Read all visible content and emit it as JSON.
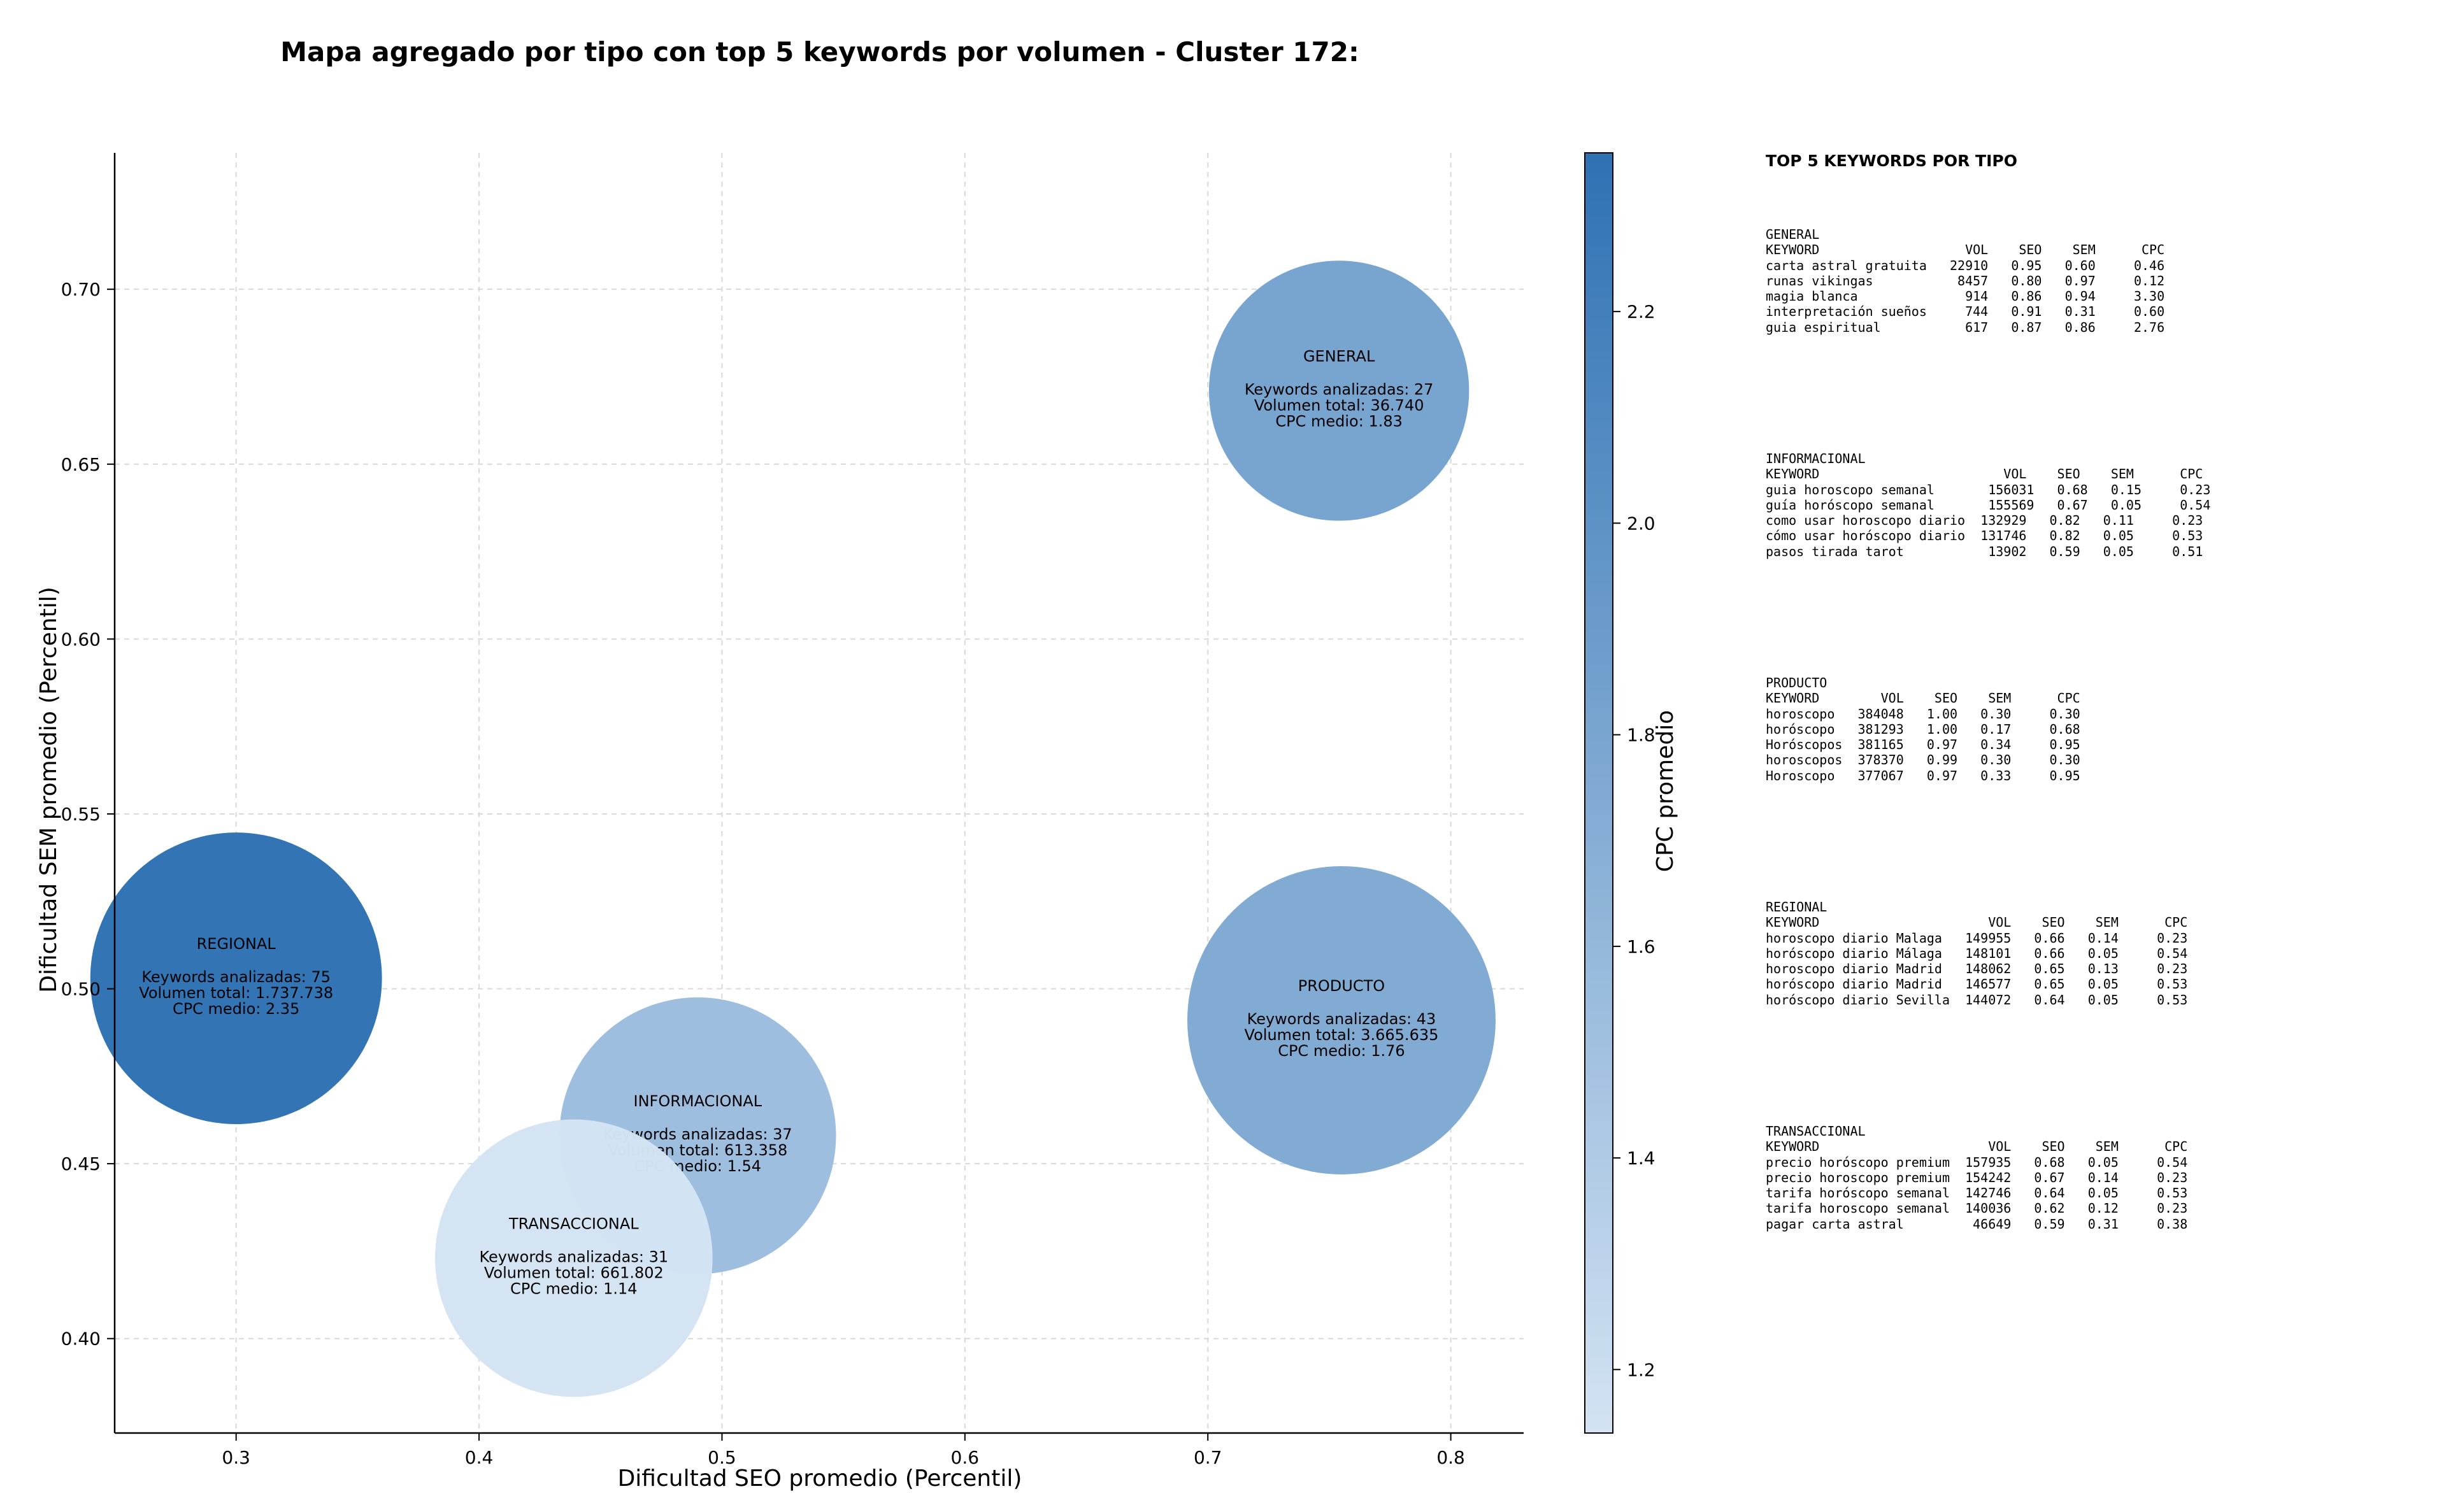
{
  "chart_data": {
    "type": "scatter",
    "title": "Mapa agregado por tipo con top 5 keywords por volumen - Cluster 172:",
    "xlabel": "Dificultad SEO promedio (Percentil)",
    "ylabel": "Dificultad SEM promedio (Percentil)",
    "xlim": [
      0.25,
      0.83
    ],
    "ylim": [
      0.373,
      0.739
    ],
    "xticks": [
      "0.3",
      "0.4",
      "0.5",
      "0.6",
      "0.7",
      "0.8"
    ],
    "yticks": [
      "0.40",
      "0.45",
      "0.50",
      "0.55",
      "0.60",
      "0.65",
      "0.70"
    ],
    "grid": true,
    "colorbar": {
      "label": "CPC promedio",
      "range": [
        1.14,
        2.35
      ],
      "ticks": [
        "1.2",
        "1.4",
        "1.6",
        "1.8",
        "2.0",
        "2.2"
      ],
      "color_low": "#d3e3f3",
      "color_high": "#2e71b3"
    },
    "bubbles": [
      {
        "type": "GENERAL",
        "x": 0.754,
        "y": 0.671,
        "cpc": 1.83,
        "volume": 36740,
        "lines": [
          "Keywords analizadas: 27",
          "Volumen total: 36.740",
          "CPC medio: 1.83"
        ]
      },
      {
        "type": "REGIONAL",
        "x": 0.3,
        "y": 0.503,
        "cpc": 2.35,
        "volume": 1737738,
        "lines": [
          "Keywords analizadas: 75",
          "Volumen total: 1.737.738",
          "CPC medio: 2.35"
        ]
      },
      {
        "type": "PRODUCTO",
        "x": 0.755,
        "y": 0.491,
        "cpc": 1.76,
        "volume": 3665635,
        "lines": [
          "Keywords analizadas: 43",
          "Volumen total: 3.665.635",
          "CPC medio: 1.76"
        ]
      },
      {
        "type": "INFORMACIONAL",
        "x": 0.49,
        "y": 0.458,
        "cpc": 1.54,
        "volume": 613358,
        "lines": [
          "Keywords analizadas: 37",
          "Volumen total: 613.358",
          "CPC medio: 1.54"
        ]
      },
      {
        "type": "TRANSACCIONAL",
        "x": 0.439,
        "y": 0.423,
        "cpc": 1.14,
        "volume": 661802,
        "lines": [
          "Keywords analizadas: 31",
          "Volumen total: 661.802",
          "CPC medio: 1.14"
        ]
      }
    ]
  },
  "tables": {
    "title": "TOP 5 KEYWORDS POR TIPO",
    "blocks": [
      {
        "name": "GENERAL",
        "lines": [
          "GENERAL",
          "KEYWORD                   VOL    SEO    SEM      CPC",
          "carta astral gratuita   22910   0.95   0.60     0.46",
          "runas vikingas           8457   0.80   0.97     0.12",
          "magia blanca              914   0.86   0.94     3.30",
          "interpretación sueños     744   0.91   0.31     0.60",
          "guia espiritual           617   0.87   0.86     2.76"
        ]
      },
      {
        "name": "INFORMACIONAL",
        "lines": [
          "INFORMACIONAL",
          "KEYWORD                        VOL    SEO    SEM      CPC",
          "guia horoscopo semanal       156031   0.68   0.15     0.23",
          "guía horóscopo semanal       155569   0.67   0.05     0.54",
          "como usar horoscopo diario  132929   0.82   0.11     0.23",
          "cómo usar horóscopo diario  131746   0.82   0.05     0.53",
          "pasos tirada tarot           13902   0.59   0.05     0.51"
        ]
      },
      {
        "name": "PRODUCTO",
        "lines": [
          "PRODUCTO",
          "KEYWORD        VOL    SEO    SEM      CPC",
          "horoscopo   384048   1.00   0.30     0.30",
          "horóscopo   381293   1.00   0.17     0.68",
          "Horóscopos  381165   0.97   0.34     0.95",
          "horoscopos  378370   0.99   0.30     0.30",
          "Horoscopo   377067   0.97   0.33     0.95"
        ]
      },
      {
        "name": "REGIONAL",
        "lines": [
          "REGIONAL",
          "KEYWORD                      VOL    SEO    SEM      CPC",
          "horoscopo diario Malaga   149955   0.66   0.14     0.23",
          "horóscopo diario Málaga   148101   0.66   0.05     0.54",
          "horoscopo diario Madrid   148062   0.65   0.13     0.23",
          "horóscopo diario Madrid   146577   0.65   0.05     0.53",
          "horóscopo diario Sevilla  144072   0.64   0.05     0.53"
        ]
      },
      {
        "name": "TRANSACCIONAL",
        "lines": [
          "TRANSACCIONAL",
          "KEYWORD                      VOL    SEO    SEM      CPC",
          "precio horóscopo premium  157935   0.68   0.05     0.54",
          "precio horoscopo premium  154242   0.67   0.14     0.23",
          "tarifa horóscopo semanal  142746   0.64   0.05     0.53",
          "tarifa horoscopo semanal  140036   0.62   0.12     0.23",
          "pagar carta astral         46649   0.59   0.31     0.38"
        ]
      }
    ]
  }
}
